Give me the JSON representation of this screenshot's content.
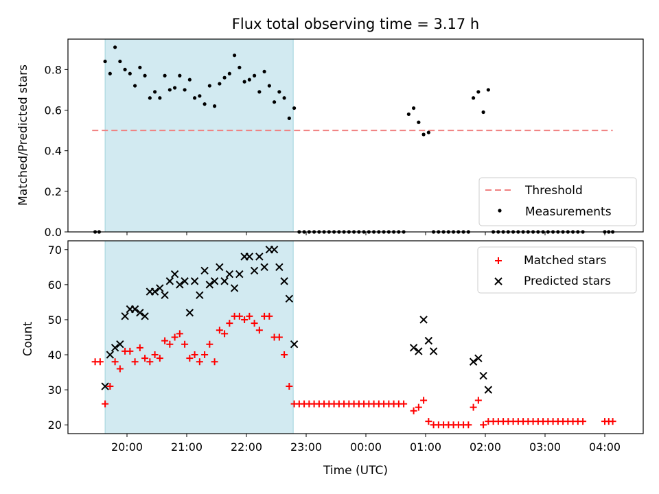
{
  "title": "Flux total observing time = 3.17 h",
  "colors": {
    "shade": "#add8e6",
    "threshold": "#f08080",
    "matched": "#ff0000",
    "predicted": "#000000",
    "measurement": "#000000"
  },
  "chart_data": [
    {
      "type": "scatter",
      "ylabel": "Matched/Predicted stars",
      "xlabel": "",
      "ylim": [
        0,
        0.95
      ],
      "yticks": [
        "0.0",
        "0.2",
        "0.4",
        "0.6",
        "0.8"
      ],
      "yticks_values": [
        0,
        0.2,
        0.4,
        0.6,
        0.8
      ],
      "shaded_span": [
        "19:38",
        "22:47"
      ],
      "threshold": {
        "name": "Threshold",
        "value": 0.5,
        "x_range": [
          "19:25",
          "04:08"
        ]
      },
      "legend": [
        "Threshold",
        "Measurements"
      ],
      "legend_position": "lower right",
      "series": [
        {
          "name": "Measurements",
          "x": [
            "19:28",
            "19:32",
            "19:38",
            "19:43",
            "19:48",
            "19:53",
            "19:58",
            "20:03",
            "20:08",
            "20:13",
            "20:18",
            "20:23",
            "20:28",
            "20:33",
            "20:38",
            "20:43",
            "20:48",
            "20:53",
            "20:58",
            "21:03",
            "21:08",
            "21:13",
            "21:18",
            "21:23",
            "21:28",
            "21:33",
            "21:38",
            "21:43",
            "21:48",
            "21:53",
            "21:58",
            "22:03",
            "22:08",
            "22:13",
            "22:18",
            "22:23",
            "22:28",
            "22:33",
            "22:38",
            "22:43",
            "22:48",
            "22:53",
            "22:58",
            "23:03",
            "23:08",
            "23:13",
            "23:18",
            "23:23",
            "23:28",
            "23:33",
            "23:38",
            "23:43",
            "23:48",
            "23:53",
            "23:58",
            "00:03",
            "00:08",
            "00:13",
            "00:18",
            "00:23",
            "00:28",
            "00:33",
            "00:38",
            "00:43",
            "00:48",
            "00:53",
            "00:58",
            "01:03",
            "01:08",
            "01:13",
            "01:18",
            "01:23",
            "01:28",
            "01:33",
            "01:38",
            "01:43",
            "01:48",
            "01:53",
            "01:58",
            "02:03",
            "02:08",
            "02:13",
            "02:18",
            "02:23",
            "02:28",
            "02:33",
            "02:38",
            "02:43",
            "02:48",
            "02:53",
            "02:58",
            "03:03",
            "03:08",
            "03:13",
            "03:18",
            "03:23",
            "03:28",
            "03:33",
            "03:38",
            "04:00",
            "04:04",
            "04:08"
          ],
          "y": [
            0,
            0,
            0.84,
            0.78,
            0.91,
            0.84,
            0.8,
            0.78,
            0.72,
            0.81,
            0.77,
            0.66,
            0.69,
            0.66,
            0.77,
            0.7,
            0.71,
            0.77,
            0.7,
            0.75,
            0.66,
            0.67,
            0.63,
            0.72,
            0.62,
            0.73,
            0.76,
            0.78,
            0.87,
            0.81,
            0.74,
            0.75,
            0.77,
            0.69,
            0.79,
            0.72,
            0.64,
            0.69,
            0.66,
            0.56,
            0.61,
            0,
            0,
            0,
            0,
            0,
            0,
            0,
            0,
            0,
            0,
            0,
            0,
            0,
            0,
            0,
            0,
            0,
            0,
            0,
            0,
            0,
            0,
            0.58,
            0.61,
            0.54,
            0.48,
            0.49,
            0,
            0,
            0,
            0,
            0,
            0,
            0,
            0,
            0.66,
            0.69,
            0.59,
            0.7,
            0,
            0,
            0,
            0,
            0,
            0,
            0,
            0,
            0,
            0,
            0,
            0,
            0,
            0,
            0,
            0,
            0,
            0,
            0,
            0,
            0,
            0
          ]
        }
      ]
    },
    {
      "type": "scatter",
      "ylabel": "Count",
      "xlabel": "Time (UTC)",
      "ylim": [
        17.5,
        72.5
      ],
      "yticks": [
        "20",
        "30",
        "40",
        "50",
        "60",
        "70"
      ],
      "yticks_values": [
        20,
        30,
        40,
        50,
        60,
        70
      ],
      "xticks": [
        "20:00",
        "21:00",
        "22:00",
        "23:00",
        "00:00",
        "01:00",
        "02:00",
        "03:00",
        "04:00"
      ],
      "shaded_span": [
        "19:38",
        "22:47"
      ],
      "legend": [
        "Matched stars",
        "Predicted stars"
      ],
      "legend_position": "upper right",
      "series": [
        {
          "name": "Matched stars",
          "marker": "+",
          "x": [
            "19:28",
            "19:33",
            "19:38",
            "19:43",
            "19:48",
            "19:53",
            "19:58",
            "20:03",
            "20:08",
            "20:13",
            "20:18",
            "20:23",
            "20:28",
            "20:33",
            "20:38",
            "20:43",
            "20:48",
            "20:53",
            "20:58",
            "21:03",
            "21:08",
            "21:13",
            "21:18",
            "21:23",
            "21:28",
            "21:33",
            "21:38",
            "21:43",
            "21:48",
            "21:53",
            "21:58",
            "22:03",
            "22:08",
            "22:13",
            "22:18",
            "22:23",
            "22:28",
            "22:33",
            "22:38",
            "22:43",
            "22:48",
            "22:53",
            "22:58",
            "23:03",
            "23:08",
            "23:13",
            "23:18",
            "23:23",
            "23:28",
            "23:33",
            "23:38",
            "23:43",
            "23:48",
            "23:53",
            "23:58",
            "00:03",
            "00:08",
            "00:13",
            "00:18",
            "00:23",
            "00:28",
            "00:33",
            "00:38",
            "00:48",
            "00:53",
            "00:58",
            "01:03",
            "01:08",
            "01:13",
            "01:18",
            "01:23",
            "01:28",
            "01:33",
            "01:38",
            "01:43",
            "01:48",
            "01:53",
            "01:58",
            "02:03",
            "02:08",
            "02:13",
            "02:18",
            "02:23",
            "02:28",
            "02:33",
            "02:38",
            "02:43",
            "02:48",
            "02:53",
            "02:58",
            "03:03",
            "03:08",
            "03:13",
            "03:18",
            "03:23",
            "03:28",
            "03:33",
            "03:38",
            "04:00",
            "04:04",
            "04:08"
          ],
          "y": [
            38,
            38,
            26,
            31,
            38,
            36,
            41,
            41,
            38,
            42,
            39,
            38,
            40,
            39,
            44,
            43,
            45,
            46,
            43,
            39,
            40,
            38,
            40,
            43,
            38,
            47,
            46,
            49,
            51,
            51,
            50,
            51,
            49,
            47,
            51,
            51,
            45,
            45,
            40,
            31,
            26,
            26,
            26,
            26,
            26,
            26,
            26,
            26,
            26,
            26,
            26,
            26,
            26,
            26,
            26,
            26,
            26,
            26,
            26,
            26,
            26,
            26,
            26,
            24,
            25,
            27,
            21,
            20,
            20,
            20,
            20,
            20,
            20,
            20,
            20,
            25,
            27,
            20,
            21,
            21,
            21,
            21,
            21,
            21,
            21,
            21,
            21,
            21,
            21,
            21,
            21,
            21,
            21,
            21,
            21,
            21,
            21,
            21,
            21,
            21,
            21
          ]
        },
        {
          "name": "Predicted stars",
          "marker": "x",
          "x": [
            "19:38",
            "19:43",
            "19:48",
            "19:53",
            "19:58",
            "20:03",
            "20:08",
            "20:13",
            "20:18",
            "20:23",
            "20:28",
            "20:33",
            "20:38",
            "20:43",
            "20:48",
            "20:53",
            "20:58",
            "21:03",
            "21:08",
            "21:13",
            "21:18",
            "21:23",
            "21:28",
            "21:33",
            "21:38",
            "21:43",
            "21:48",
            "21:53",
            "21:58",
            "22:03",
            "22:08",
            "22:13",
            "22:18",
            "22:23",
            "22:28",
            "22:33",
            "22:38",
            "22:43",
            "22:48",
            "00:48",
            "00:53",
            "00:58",
            "01:03",
            "01:08",
            "01:48",
            "01:53",
            "01:58",
            "02:03"
          ],
          "y": [
            31,
            40,
            42,
            43,
            51,
            53,
            53,
            52,
            51,
            58,
            58,
            59,
            57,
            61,
            63,
            60,
            61,
            52,
            61,
            57,
            64,
            60,
            61,
            65,
            61,
            63,
            59,
            63,
            68,
            68,
            64,
            68,
            65,
            70,
            70,
            65,
            61,
            56,
            43,
            42,
            41,
            50,
            44,
            41,
            38,
            39,
            34,
            30
          ]
        }
      ]
    }
  ]
}
